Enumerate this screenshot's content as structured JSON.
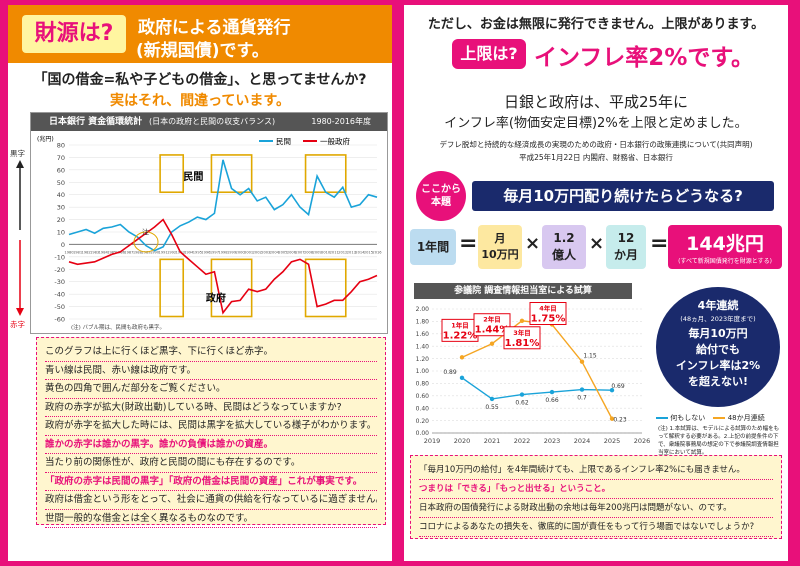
{
  "left": {
    "header": {
      "badge": "財源は?",
      "line1": "政府による通貨発行",
      "line2": "(新規国債)です。"
    },
    "question": "「国の借金=私や子どもの借金」、と思ってませんか?",
    "answer": "実はそれ、間違っています。",
    "chart_title": "日本銀行 資金循環統計",
    "chart_subtitle": "(日本の政府と民間の収支バランス)",
    "chart_years": "1980-2016年度",
    "bullets": [
      {
        "text": "このグラフは上に行くほど黒字、下に行くほど赤字。",
        "color": "#222"
      },
      {
        "text": "青い線は民間、赤い線は政府です。",
        "color": "#222"
      },
      {
        "text": "黄色の四角で囲んだ部分をご覧ください。",
        "color": "#222"
      },
      {
        "text": "政府の赤字が拡大(財政出動)している時、民間はどうなっていますか?",
        "color": "#222"
      },
      {
        "text": "政府が赤字を拡大した時には、民間は黒字を拡大している様子がわかります。",
        "color": "#222"
      },
      {
        "text": "誰かの赤字は誰かの黒字。誰かの負債は誰かの資産。",
        "color": "#e8107a"
      },
      {
        "text": "当たり前の関係性が、政府と民間の間にも存在するのです。",
        "color": "#222"
      },
      {
        "text": "「政府の赤字は民間の黒字」「政府の借金は民間の資産」これが事実です。",
        "color": "#e8107a"
      },
      {
        "text": "政府は借金という形をとって、社会に通貨の供給を行なっているに過ぎません。",
        "color": "#222"
      },
      {
        "text": "世間一般的な借金とは全く異なるものなのです。",
        "color": "#222"
      }
    ]
  },
  "right": {
    "intro": "ただし、お金は無限に発行できません。上限があります。",
    "badge": "上限は?",
    "headline": "インフレ率2%です。",
    "decision1": "日銀と政府は、平成25年に",
    "decision2": "インフレ率(物価安定目標)2%を上限と定めました。",
    "source1": "デフレ脱却と持続的な経済成長の実現のための政府・日本銀行の政策連携について(共同声明)",
    "source2": "平成25年1月22日 内閣府、財務省、日本銀行",
    "tag1": "ここから",
    "tag2": "本題",
    "question": "毎月10万円配り続けたらどうなる?",
    "chart_title": "参議院 調査情報担当室による試算",
    "callout": [
      "4年連続",
      "(48ヵ月、2023年度まで)",
      "毎月10万円",
      "給付でも",
      "インフレ率は2%",
      "を超えない!"
    ],
    "legend_none": "何もしない",
    "legend_48": "48か月連続",
    "note": "(注) 1.本試算は、モデルによる試算のため幅をもって解釈する必要がある。2.上記の前提条件の下で、衆議院事務局の想定の下で参議院調査情報担当室において試算。",
    "bullets": [
      {
        "text": "「毎月10万円の給付」を4年間続けても、上限であるインフレ率2%にも届きません。",
        "color": "#222"
      },
      {
        "text": "つまりは「できる」「もっと出せる」ということ。",
        "color": "#e8107a"
      },
      {
        "text": "日本政府の国債発行による財政出動の余地は毎年200兆円は問題がない、のです。",
        "color": "#222"
      },
      {
        "text": "コロナによるあなたの損失を、徹底的に国が責任をもって行う場面ではないでしょうか?",
        "color": "#222"
      }
    ]
  },
  "equation": {
    "term1": "1年間",
    "term2a": "月",
    "term2b": "10万円",
    "term3a": "1.2",
    "term3b": "億人",
    "term4a": "12",
    "term4b": "か月",
    "result": "144兆円",
    "result_note": "(すべて新規国債発行を財源とする)"
  },
  "colors": {
    "magenta": "#e8107a",
    "orange": "#f08a00",
    "navy": "#1a2a6c",
    "blue": "#1aa3d9",
    "yellow_box": "#e0a800",
    "pink_box": "#f6b8d3"
  },
  "chart_data": [
    {
      "type": "line",
      "title": "日本銀行 資金循環統計",
      "subtitle": "(日本の政府と民間の収支バランス)",
      "ylabel": "(兆円)",
      "ylim": [
        -60,
        80
      ],
      "yticks": [
        -60,
        -50,
        -40,
        -30,
        -20,
        -10,
        0,
        10,
        20,
        30,
        40,
        50,
        60,
        70,
        80
      ],
      "x": [
        1980,
        1981,
        1982,
        1983,
        1984,
        1985,
        1986,
        1987,
        1988,
        1989,
        1990,
        1991,
        1992,
        1993,
        1994,
        1995,
        1996,
        1997,
        1998,
        1999,
        2000,
        2001,
        2002,
        2003,
        2004,
        2005,
        2006,
        2007,
        2008,
        2009,
        2010,
        2011,
        2012,
        2013,
        2014,
        2015,
        2016
      ],
      "series": [
        {
          "name": "民間",
          "color": "#1aa3d9",
          "values": [
            8,
            10,
            12,
            9,
            13,
            14,
            16,
            10,
            6,
            -1,
            -5,
            -2,
            10,
            15,
            18,
            22,
            20,
            25,
            68,
            45,
            40,
            45,
            35,
            38,
            28,
            32,
            40,
            30,
            24,
            55,
            42,
            38,
            46,
            30,
            32,
            40,
            38
          ]
        },
        {
          "name": "一般政府",
          "color": "#e60012",
          "values": [
            -14,
            -16,
            -15,
            -14,
            -11,
            -8,
            -6,
            -1,
            4,
            9,
            14,
            20,
            8,
            -6,
            -12,
            -18,
            -24,
            -22,
            -55,
            -46,
            -45,
            -36,
            -38,
            -36,
            -28,
            -22,
            -14,
            -12,
            -16,
            -50,
            -48,
            -45,
            -45,
            -38,
            -30,
            -28,
            -25
          ]
        }
      ],
      "legend": "top-right",
      "annotations": [
        "黒字",
        "赤字",
        "民間",
        "政府",
        "注"
      ],
      "footnote": "(注) バブル期は、民間も政府も黒字。"
    },
    {
      "type": "line",
      "title": "参議院 調査情報担当室による試算",
      "x": [
        2020,
        2021,
        2022,
        2023,
        2024,
        2025
      ],
      "xticks": [
        2019,
        2020,
        2021,
        2022,
        2023,
        2024,
        2025,
        2026
      ],
      "ylim": [
        0,
        2.0
      ],
      "yticks": [
        0.0,
        0.2,
        0.4,
        0.6,
        0.8,
        1.0,
        1.2,
        1.4,
        1.6,
        1.8,
        2.0
      ],
      "series": [
        {
          "name": "何もしない",
          "color": "#1aa3d9",
          "values": [
            0.89,
            0.55,
            0.62,
            0.66,
            0.7,
            0.69
          ]
        },
        {
          "name": "48か月連続",
          "color": "#f5a623",
          "values": [
            1.22,
            1.44,
            1.81,
            1.75,
            1.15,
            0.23
          ]
        }
      ],
      "callouts": [
        {
          "label": "1年目",
          "value": "1.22%"
        },
        {
          "label": "2年目",
          "value": "1.44%"
        },
        {
          "label": "3年目",
          "value": "1.81%"
        },
        {
          "label": "4年目",
          "value": "1.75%"
        }
      ],
      "legend": "bottom-right"
    }
  ]
}
